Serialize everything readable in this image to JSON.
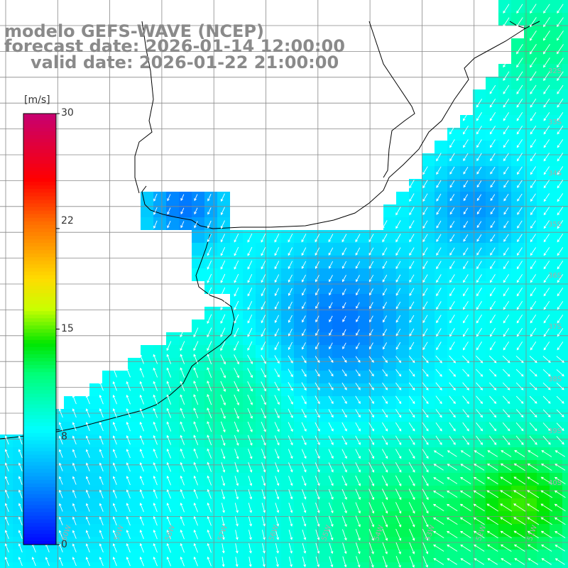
{
  "title": {
    "line1": "modelo GEFS-WAVE (NCEP)",
    "line2": "forecast date: 2026-01-14 12:00:00",
    "line3": "valid date: 2026-01-22 21:00:00"
  },
  "colorbar": {
    "units": "[m/s]",
    "ticks": [
      "30",
      "22",
      "15",
      "8",
      "0"
    ],
    "tick_values": [
      30,
      22,
      15,
      8,
      0
    ],
    "min": 0,
    "max": 30,
    "colors": [
      "#0000ff",
      "#00aaff",
      "#00ffff",
      "#00ff00",
      "#ffff00",
      "#ff8000",
      "#ff0000",
      "#cc0066"
    ]
  },
  "lat_labels": [
    "32S",
    "33S",
    "34S",
    "35S",
    "36S",
    "37S",
    "38S",
    "39S",
    "40S"
  ],
  "lon_labels": [
    "60W",
    "59W",
    "58W",
    "57W",
    "56W",
    "55W",
    "54W",
    "53W",
    "52W",
    "51W",
    "50W"
  ],
  "colors": {
    "grid": "#888888",
    "coast": "#000000",
    "arrow": "#ffffff",
    "title": "#8a8a8a"
  }
}
